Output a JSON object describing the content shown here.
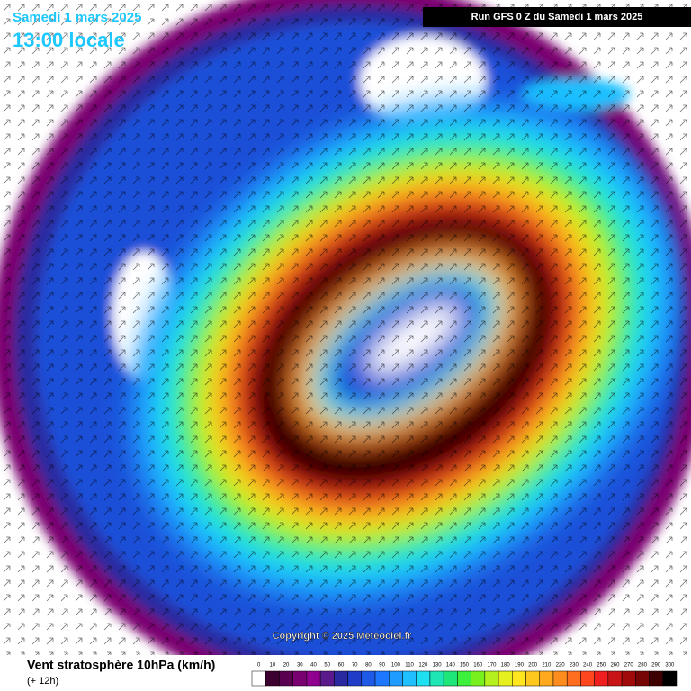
{
  "header": {
    "date": "Samedi 1 mars 2025",
    "time": "13:00 locale",
    "run": "Run GFS 0 Z du Samedi 1 mars 2025"
  },
  "copyright": "Copyright © 2025 Meteociel.fr",
  "legend": {
    "title": "Vent stratosphère 10hPa (km/h)",
    "subtitle": "(+ 12h)",
    "ticks": [
      0,
      10,
      20,
      30,
      40,
      50,
      60,
      70,
      80,
      90,
      100,
      110,
      120,
      130,
      140,
      150,
      160,
      170,
      180,
      190,
      200,
      210,
      220,
      230,
      240,
      250,
      260,
      270,
      280,
      290,
      300
    ],
    "colors": [
      "#ffffff",
      "#3c0030",
      "#5a0050",
      "#780070",
      "#900090",
      "#5a1a8c",
      "#2a2aa0",
      "#1e3cc8",
      "#1e5ae6",
      "#1e78ff",
      "#1e9cff",
      "#1ec0ff",
      "#1ee0f0",
      "#1ee6b4",
      "#1ee678",
      "#3cf03c",
      "#78f01e",
      "#b4f01e",
      "#e6f01e",
      "#ffe61e",
      "#ffc81e",
      "#ffaa1e",
      "#ff8c1e",
      "#ff6e1e",
      "#ff461e",
      "#f01e1e",
      "#c81414",
      "#a00a0a",
      "#780505",
      "#3c0000",
      "#000000"
    ]
  }
}
